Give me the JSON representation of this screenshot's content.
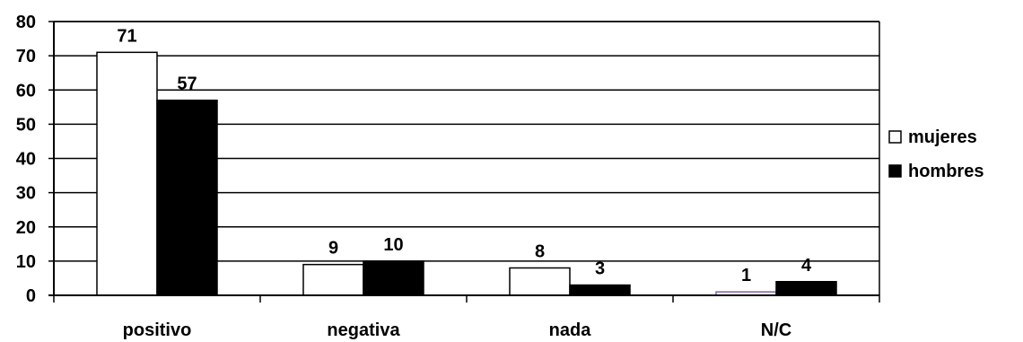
{
  "chart_data": {
    "type": "bar",
    "categories": [
      "positivo",
      "negativa",
      "nada",
      "N/C"
    ],
    "series": [
      {
        "name": "mujeres",
        "values": [
          71,
          9,
          8,
          1
        ],
        "color": "#ffffff"
      },
      {
        "name": "hombres",
        "values": [
          57,
          10,
          3,
          4
        ],
        "color": "#000000"
      }
    ],
    "ylim": [
      0,
      80
    ],
    "yticks": [
      0,
      10,
      20,
      30,
      40,
      50,
      60,
      70,
      80
    ],
    "title": "",
    "xlabel": "",
    "ylabel": "",
    "grid": true,
    "legend_position": "right",
    "data_labels": true
  }
}
